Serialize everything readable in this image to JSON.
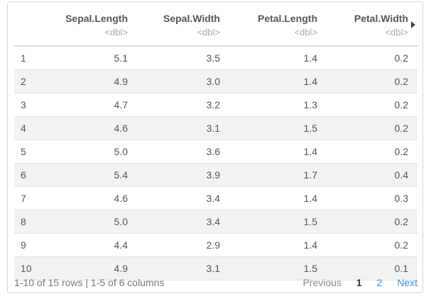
{
  "columns": [
    {
      "name": "Sepal.Length",
      "type": "<dbl>"
    },
    {
      "name": "Sepal.Width",
      "type": "<dbl>"
    },
    {
      "name": "Petal.Length",
      "type": "<dbl>"
    },
    {
      "name": "Petal.Width",
      "type": "<dbl>"
    }
  ],
  "rows": [
    {
      "idx": "1",
      "values": [
        "5.1",
        "3.5",
        "1.4",
        "0.2"
      ]
    },
    {
      "idx": "2",
      "values": [
        "4.9",
        "3.0",
        "1.4",
        "0.2"
      ]
    },
    {
      "idx": "3",
      "values": [
        "4.7",
        "3.2",
        "1.3",
        "0.2"
      ]
    },
    {
      "idx": "4",
      "values": [
        "4.6",
        "3.1",
        "1.5",
        "0.2"
      ]
    },
    {
      "idx": "5",
      "values": [
        "5.0",
        "3.6",
        "1.4",
        "0.2"
      ]
    },
    {
      "idx": "6",
      "values": [
        "5.4",
        "3.9",
        "1.7",
        "0.4"
      ]
    },
    {
      "idx": "7",
      "values": [
        "4.6",
        "3.4",
        "1.4",
        "0.3"
      ]
    },
    {
      "idx": "8",
      "values": [
        "5.0",
        "3.4",
        "1.5",
        "0.2"
      ]
    },
    {
      "idx": "9",
      "values": [
        "4.4",
        "2.9",
        "1.4",
        "0.2"
      ]
    },
    {
      "idx": "10",
      "values": [
        "4.9",
        "3.1",
        "1.5",
        "0.1"
      ]
    }
  ],
  "footer": {
    "info": "1-10 of 15 rows | 1-5 of 6 columns",
    "previous": "Previous",
    "current_page": "1",
    "page_2": "2",
    "next": "Next"
  },
  "icons": {
    "scroll_right": "triangle-right-icon"
  }
}
